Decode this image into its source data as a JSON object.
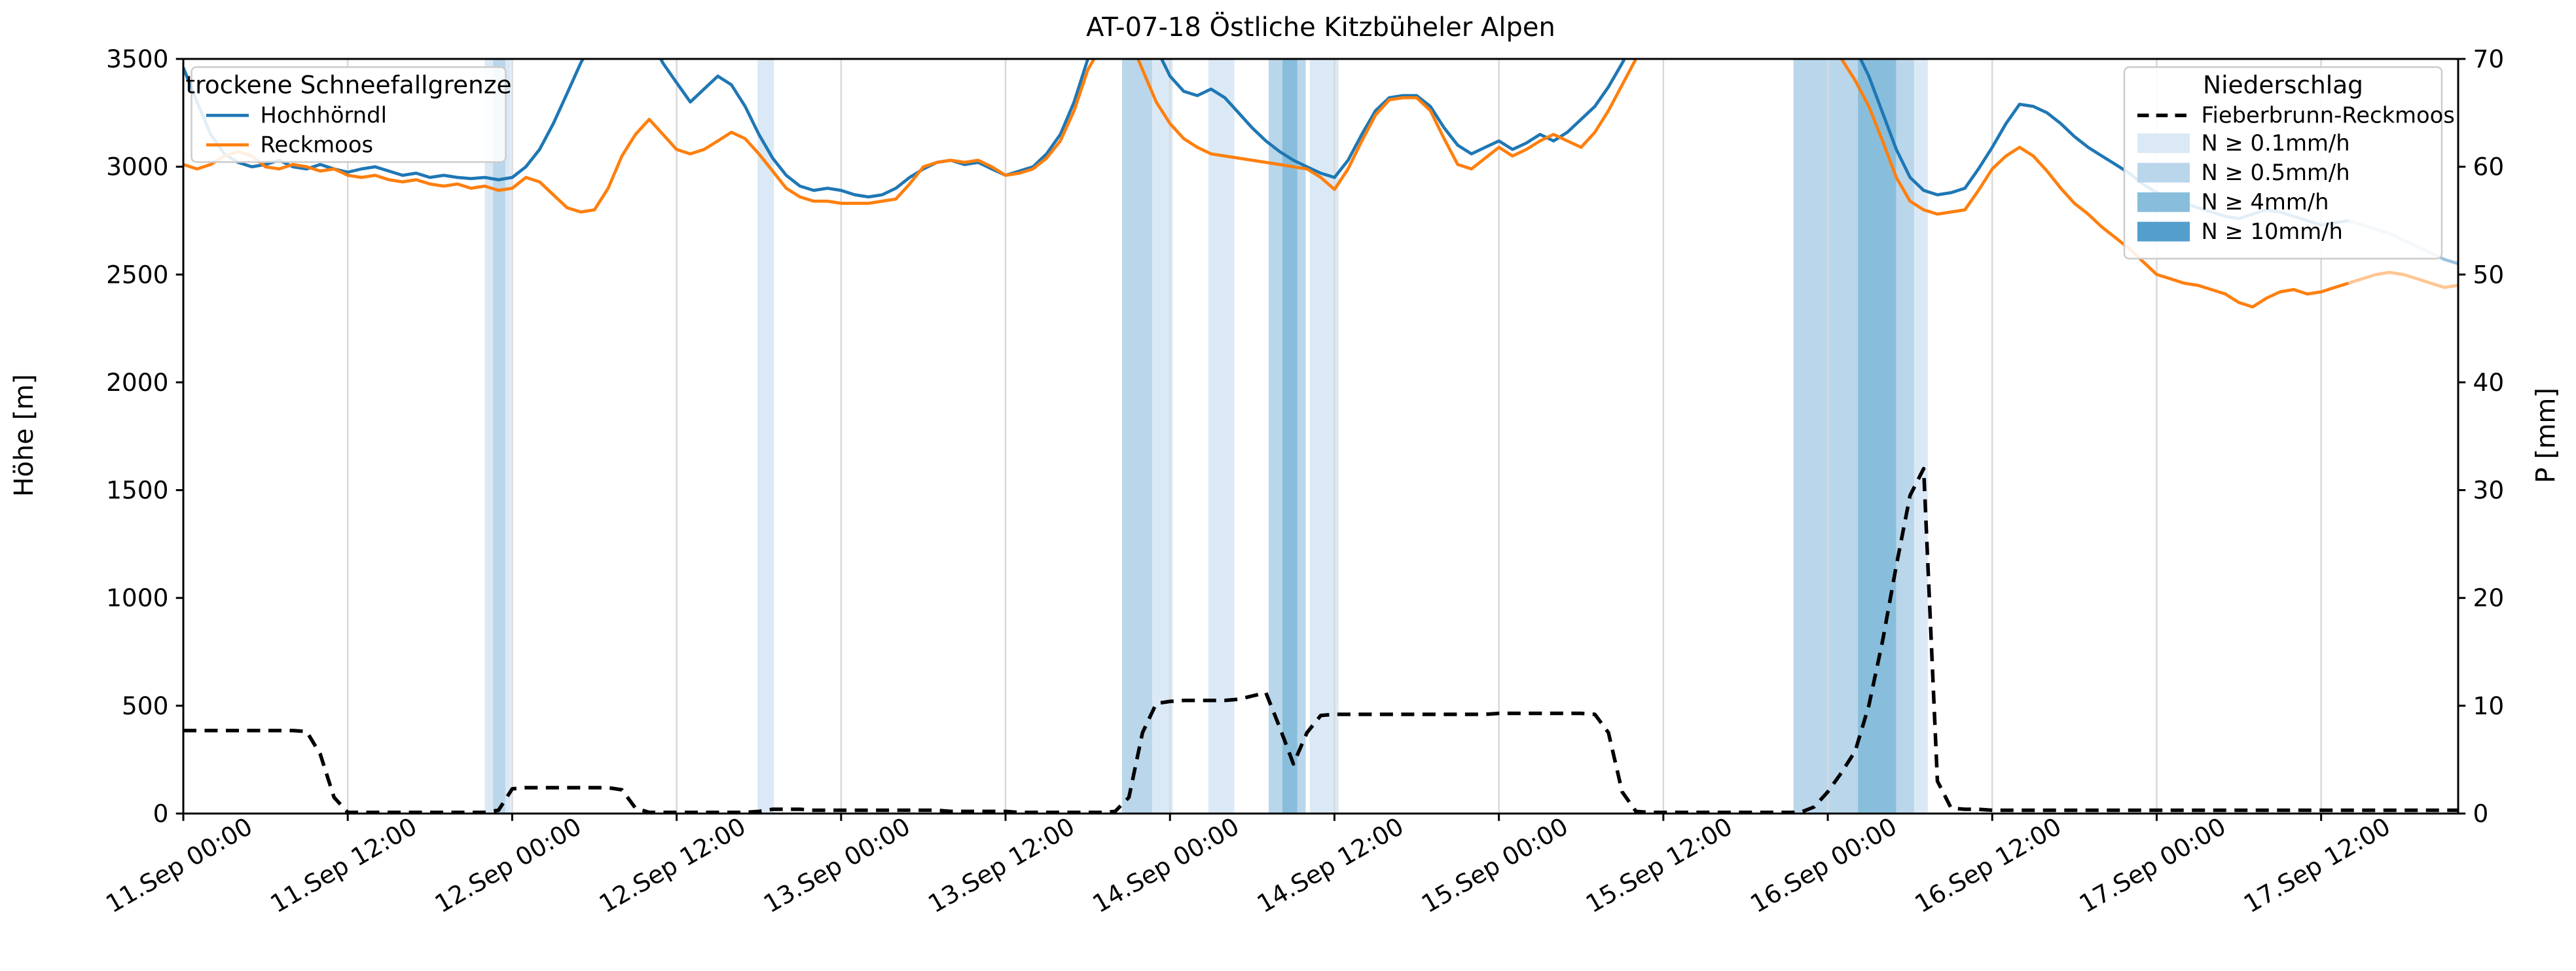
{
  "title": "AT-07-18 Östliche Kitzbüheler Alpen",
  "axes": {
    "x": {
      "min_hour": 0,
      "max_hour": 166,
      "tick_hours": [
        0,
        12,
        24,
        36,
        48,
        60,
        72,
        84,
        96,
        108,
        120,
        132,
        144,
        156
      ],
      "tick_labels": [
        "11.Sep 00:00",
        "11.Sep 12:00",
        "12.Sep 00:00",
        "12.Sep 12:00",
        "13.Sep 00:00",
        "13.Sep 12:00",
        "14.Sep 00:00",
        "14.Sep 12:00",
        "15.Sep 00:00",
        "15.Sep 12:00",
        "16.Sep 00:00",
        "16.Sep 12:00",
        "17.Sep 00:00",
        "17.Sep 12:00"
      ]
    },
    "y_left": {
      "label": "Höhe [m]",
      "min": 0,
      "max": 3500,
      "ticks": [
        0,
        500,
        1000,
        1500,
        2000,
        2500,
        3000,
        3500
      ]
    },
    "y_right": {
      "label": "P [mm]",
      "min": 0,
      "max": 70,
      "ticks": [
        0,
        10,
        20,
        30,
        40,
        50,
        60,
        70
      ]
    }
  },
  "legend_left": {
    "title": "trockene Schneefallgrenze",
    "entries": [
      {
        "label": "Hochhörndl",
        "color": "#1f77b4"
      },
      {
        "label": "Reckmoos",
        "color": "#ff7f0e"
      }
    ]
  },
  "legend_right": {
    "title": "Niederschlag",
    "line_entry": {
      "label": "Fieberbrunn-Reckmoos",
      "color": "#000000"
    },
    "band_entries": [
      {
        "label": "N ≥ 0.1mm/h",
        "color": "#dbe9f6"
      },
      {
        "label": "N ≥ 0.5mm/h",
        "color": "#bad6eb"
      },
      {
        "label": "N ≥ 4mm/h",
        "color": "#88bedc"
      },
      {
        "label": "N ≥ 10mm/h",
        "color": "#539ecd"
      }
    ]
  },
  "chart_data": {
    "type": "line",
    "title": "AT-07-18 Östliche Kitzbüheler Alpen",
    "xlabel": "",
    "ylabel_left": "Höhe [m]",
    "ylabel_right": "P [mm]",
    "x_unit": "hours since 11.Sep 00:00",
    "x_step": 1,
    "ylim_left": [
      0,
      3500
    ],
    "ylim_right": [
      0,
      70
    ],
    "grid": "vertical",
    "forecast_start_hour": 158,
    "band_colors": {
      "0.1": "#dbe9f6",
      "0.5": "#bad6eb",
      "4": "#88bedc",
      "10": "#539ecd"
    },
    "precip_bands": [
      {
        "start": 22.0,
        "end": 22.6,
        "level": "0.1"
      },
      {
        "start": 22.6,
        "end": 23.5,
        "level": "0.5"
      },
      {
        "start": 23.5,
        "end": 23.9,
        "level": "0.1"
      },
      {
        "start": 41.9,
        "end": 43.1,
        "level": "0.1"
      },
      {
        "start": 68.5,
        "end": 70.7,
        "level": "0.5"
      },
      {
        "start": 70.7,
        "end": 72.2,
        "level": "0.1"
      },
      {
        "start": 74.8,
        "end": 76.7,
        "level": "0.1"
      },
      {
        "start": 79.2,
        "end": 80.2,
        "level": "0.5"
      },
      {
        "start": 80.2,
        "end": 81.3,
        "level": "4"
      },
      {
        "start": 81.3,
        "end": 81.9,
        "level": "0.5"
      },
      {
        "start": 82.2,
        "end": 84.3,
        "level": "0.1"
      },
      {
        "start": 117.5,
        "end": 122.2,
        "level": "0.5"
      },
      {
        "start": 122.2,
        "end": 125.0,
        "level": "4"
      },
      {
        "start": 125.0,
        "end": 126.3,
        "level": "0.5"
      },
      {
        "start": 126.3,
        "end": 127.3,
        "level": "0.1"
      }
    ],
    "series": [
      {
        "name": "Hochhörndl",
        "axis": "left",
        "color": "#1f77b4",
        "style": "solid",
        "values": [
          3460,
          3300,
          3150,
          3060,
          3020,
          3000,
          3010,
          3030,
          3000,
          2990,
          3010,
          2990,
          2975,
          2990,
          3000,
          2980,
          2960,
          2970,
          2950,
          2960,
          2950,
          2945,
          2950,
          2940,
          2950,
          3000,
          3080,
          3200,
          3340,
          3480,
          3600,
          3700,
          3750,
          3700,
          3600,
          3480,
          3390,
          3300,
          3360,
          3420,
          3380,
          3280,
          3150,
          3040,
          2960,
          2910,
          2890,
          2900,
          2890,
          2870,
          2860,
          2870,
          2900,
          2950,
          2990,
          3020,
          3030,
          3010,
          3020,
          2990,
          2960,
          2980,
          3000,
          3060,
          3150,
          3300,
          3500,
          3650,
          3750,
          3800,
          3700,
          3550,
          3420,
          3350,
          3330,
          3360,
          3320,
          3250,
          3180,
          3120,
          3070,
          3030,
          3000,
          2970,
          2950,
          3030,
          3150,
          3260,
          3320,
          3330,
          3330,
          3280,
          3180,
          3100,
          3060,
          3090,
          3120,
          3080,
          3110,
          3150,
          3120,
          3160,
          3220,
          3280,
          3370,
          3480,
          3600,
          3700,
          3750,
          3800,
          3850,
          3850,
          3850,
          3850,
          3850,
          3850,
          3850,
          3850,
          3800,
          3750,
          3700,
          3650,
          3550,
          3420,
          3250,
          3080,
          2950,
          2890,
          2870,
          2880,
          2900,
          2990,
          3090,
          3200,
          3290,
          3280,
          3250,
          3200,
          3140,
          3090,
          3050,
          3010,
          2970,
          2920,
          2880,
          2850,
          2830,
          2810,
          2790,
          2770,
          2760,
          2780,
          2800,
          2790,
          2770,
          2750,
          2730,
          2740,
          2750,
          2730,
          2710,
          2690,
          2660,
          2630,
          2600,
          2570,
          2550
        ]
      },
      {
        "name": "Reckmoos",
        "axis": "left",
        "color": "#ff7f0e",
        "style": "solid",
        "values": [
          3010,
          2990,
          3010,
          3050,
          3070,
          3050,
          3000,
          2990,
          3010,
          3000,
          2980,
          2990,
          2960,
          2950,
          2960,
          2940,
          2930,
          2940,
          2920,
          2910,
          2920,
          2900,
          2910,
          2890,
          2900,
          2950,
          2930,
          2870,
          2810,
          2790,
          2800,
          2900,
          3050,
          3150,
          3220,
          3150,
          3080,
          3060,
          3080,
          3120,
          3160,
          3130,
          3060,
          2980,
          2900,
          2860,
          2840,
          2840,
          2830,
          2830,
          2830,
          2840,
          2850,
          2920,
          3000,
          3020,
          3030,
          3020,
          3030,
          3000,
          2960,
          2970,
          2990,
          3040,
          3120,
          3260,
          3450,
          3560,
          3650,
          3600,
          3450,
          3300,
          3200,
          3130,
          3090,
          3060,
          3050,
          3040,
          3030,
          3020,
          3010,
          3000,
          2990,
          2950,
          2895,
          2990,
          3120,
          3240,
          3310,
          3320,
          3320,
          3260,
          3130,
          3010,
          2990,
          3040,
          3090,
          3050,
          3080,
          3120,
          3150,
          3120,
          3090,
          3160,
          3260,
          3380,
          3500,
          3600,
          3680,
          3750,
          3800,
          3800,
          3800,
          3800,
          3800,
          3800,
          3800,
          3780,
          3720,
          3650,
          3580,
          3500,
          3400,
          3280,
          3120,
          2950,
          2840,
          2800,
          2780,
          2790,
          2800,
          2890,
          2990,
          3050,
          3090,
          3050,
          2980,
          2900,
          2830,
          2780,
          2720,
          2670,
          2620,
          2560,
          2500,
          2480,
          2460,
          2450,
          2430,
          2410,
          2370,
          2350,
          2390,
          2420,
          2430,
          2410,
          2420,
          2440,
          2460,
          2480,
          2500,
          2510,
          2500,
          2480,
          2460,
          2440,
          2450
        ]
      },
      {
        "name": "Fieberbrunn-Reckmoos",
        "axis": "right",
        "color": "#000000",
        "style": "dashed",
        "values": [
          7.7,
          7.7,
          7.7,
          7.7,
          7.7,
          7.7,
          7.7,
          7.7,
          7.7,
          7.6,
          5.5,
          1.5,
          0.1,
          0.1,
          0.1,
          0.1,
          0.1,
          0.1,
          0.1,
          0.1,
          0.1,
          0.1,
          0.1,
          0.3,
          2.3,
          2.4,
          2.4,
          2.4,
          2.4,
          2.4,
          2.4,
          2.4,
          2.2,
          0.5,
          0.1,
          0.1,
          0.1,
          0.1,
          0.1,
          0.1,
          0.1,
          0.1,
          0.2,
          0.4,
          0.4,
          0.4,
          0.3,
          0.3,
          0.3,
          0.3,
          0.3,
          0.3,
          0.3,
          0.3,
          0.3,
          0.3,
          0.2,
          0.2,
          0.2,
          0.2,
          0.2,
          0.1,
          0.1,
          0.1,
          0.1,
          0.1,
          0.1,
          0.1,
          0.2,
          1.5,
          7.5,
          10.2,
          10.4,
          10.5,
          10.5,
          10.5,
          10.5,
          10.6,
          10.9,
          11.2,
          8.0,
          4.6,
          7.5,
          9.1,
          9.2,
          9.2,
          9.2,
          9.2,
          9.2,
          9.2,
          9.2,
          9.2,
          9.2,
          9.2,
          9.2,
          9.2,
          9.3,
          9.3,
          9.3,
          9.3,
          9.3,
          9.3,
          9.3,
          9.2,
          7.5,
          2.0,
          0.2,
          0.1,
          0.1,
          0.1,
          0.1,
          0.1,
          0.1,
          0.1,
          0.1,
          0.1,
          0.1,
          0.1,
          0.1,
          0.6,
          2.0,
          3.8,
          5.8,
          10.0,
          16.0,
          23.0,
          29.5,
          32.0,
          3.0,
          0.5,
          0.4,
          0.4,
          0.3,
          0.3,
          0.3,
          0.3,
          0.3,
          0.3,
          0.3,
          0.3,
          0.3,
          0.3,
          0.3,
          0.3,
          0.3,
          0.3,
          0.3,
          0.3,
          0.3,
          0.3,
          0.3,
          0.3,
          0.3,
          0.3,
          0.3,
          0.3,
          0.3,
          0.3,
          0.3,
          0.3,
          0.3,
          0.3,
          0.3,
          0.3,
          0.3,
          0.3,
          0.3
        ]
      }
    ]
  }
}
